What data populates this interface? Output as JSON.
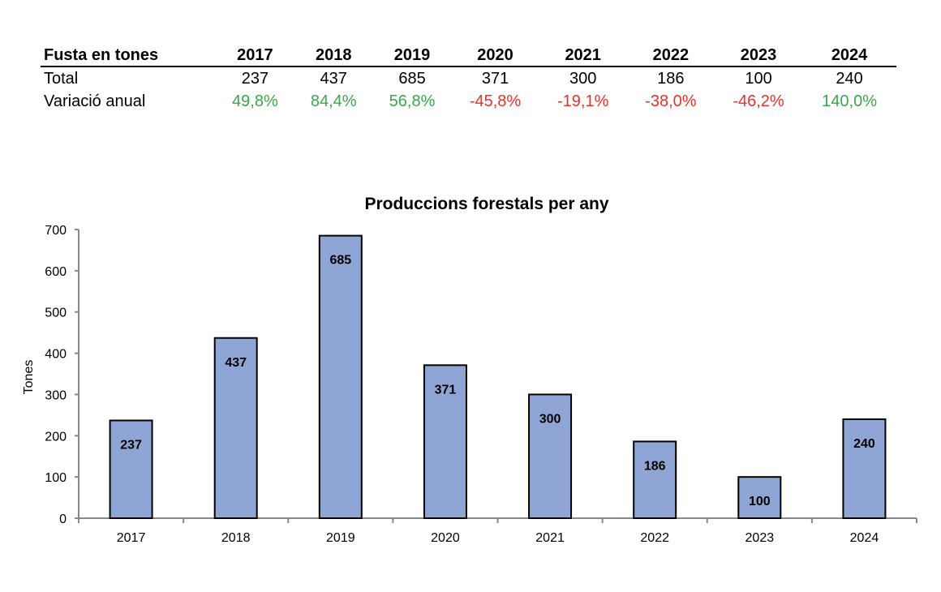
{
  "table": {
    "header_label": "Fusta en tones",
    "years": [
      "2017",
      "2018",
      "2019",
      "2020",
      "2021",
      "2022",
      "2023",
      "2024"
    ],
    "rows": [
      {
        "label": "Total",
        "values": [
          "237",
          "437",
          "685",
          "371",
          "300",
          "186",
          "100",
          "240"
        ]
      },
      {
        "label": "Variació anual",
        "values": [
          "49,8%",
          "84,4%",
          "56,8%",
          "-45,8%",
          "-19,1%",
          "-38,0%",
          "-46,2%",
          "140,0%"
        ]
      }
    ]
  },
  "colors": {
    "bar": "#8EA5D6",
    "positive": "#3AA84A",
    "negative": "#E8322A",
    "axis": "#888888"
  },
  "chart_data": {
    "type": "bar",
    "title": "Produccions forestals per any",
    "xlabel": "",
    "ylabel": "Tones",
    "categories": [
      "2017",
      "2018",
      "2019",
      "2020",
      "2021",
      "2022",
      "2023",
      "2024"
    ],
    "values": [
      237,
      437,
      685,
      371,
      300,
      186,
      100,
      240
    ],
    "data_labels": [
      "237",
      "437",
      "685",
      "371",
      "300",
      "186",
      "100",
      "240"
    ],
    "ylim": [
      0,
      700
    ],
    "yticks": [
      "0",
      "100",
      "200",
      "300",
      "400",
      "500",
      "600",
      "700"
    ],
    "grid": false,
    "legend": "none"
  }
}
